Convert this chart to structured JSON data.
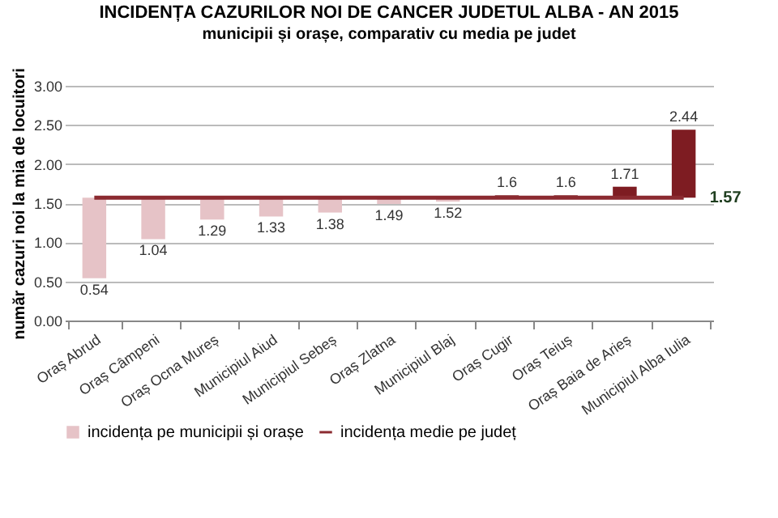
{
  "chart_data": {
    "type": "bar",
    "title": "INCIDENȚA CAZURILOR NOI DE CANCER JUDETUL ALBA - AN 2015",
    "subtitle": "municipii și orașe, comparativ cu media pe judet",
    "ylabel": "număr cazuri noi la  mia de locuitori",
    "categories": [
      "Oraș Abrud",
      "Oraș Câmpeni",
      "Oraș Ocna Mureș",
      "Municipiul Aiud",
      "Municipiul Sebeș",
      "Oraș Zlatna",
      "Municipiul Blaj",
      "Oraș Cugir",
      "Oraș Teiuș",
      "Oraș Baia de Arieș",
      "Municipiul Alba Iulia"
    ],
    "series": [
      {
        "name": "incidența pe municipii și orașe",
        "color": "#e6c3c7",
        "values": [
          -1.03,
          -0.53,
          -0.28,
          -0.24,
          -0.19,
          -0.08,
          -0.05,
          0.03,
          0.03,
          0.14,
          0.87
        ],
        "base": [
          1.57,
          1.57,
          1.57,
          1.57,
          1.57,
          1.57,
          1.57,
          1.57,
          1.57,
          1.57,
          1.57
        ],
        "colors": [
          "#e6c3c7",
          "#e6c3c7",
          "#e6c3c7",
          "#e6c3c7",
          "#e6c3c7",
          "#e6c3c7",
          "#e6c3c7",
          "#7e1c22",
          "#7e1c22",
          "#7e1c22",
          "#7e1c22"
        ],
        "value_labels": [
          "0.54",
          "1.04",
          "1.29",
          "1.33",
          "1.38",
          "1.49",
          "1.52",
          "1.6",
          "1.6",
          "1.71",
          "2.44"
        ]
      },
      {
        "name": "incidența medie pe județ",
        "type": "line",
        "color": "#8b2a30",
        "values": [
          1.57,
          1.57,
          1.57,
          1.57,
          1.57,
          1.57,
          1.57,
          1.57,
          1.57,
          1.57,
          1.57
        ]
      }
    ],
    "annotations": [
      {
        "text": "1.57",
        "x": "Municipiul Alba Iulia",
        "y": 1.57
      }
    ],
    "ylim": [
      0,
      3
    ],
    "yticks": [
      {
        "value": 0,
        "label": "0.00"
      },
      {
        "value": 0.5,
        "label": "0.50"
      },
      {
        "value": 1,
        "label": "1.00"
      },
      {
        "value": 1.5,
        "label": "1.50"
      },
      {
        "value": 2,
        "label": "2.00"
      },
      {
        "value": 2.5,
        "label": "2.50"
      },
      {
        "value": 3,
        "label": "3.00"
      }
    ],
    "grid": "y",
    "legend": "bottom"
  }
}
